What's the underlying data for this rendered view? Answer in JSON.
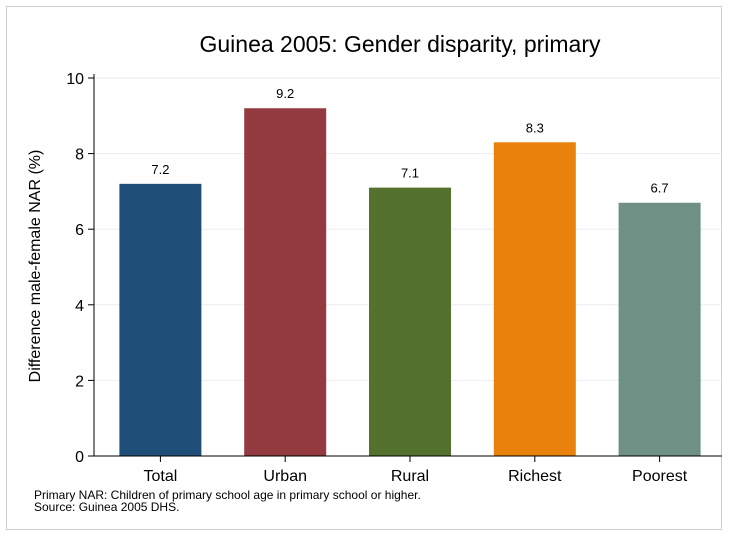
{
  "chart_data": {
    "type": "bar",
    "title": "Guinea 2005: Gender disparity, primary",
    "xlabel": "",
    "ylabel": "Difference male-female NAR (%)",
    "categories": [
      "Total",
      "Urban",
      "Rural",
      "Richest",
      "Poorest"
    ],
    "values": [
      7.2,
      9.2,
      7.1,
      8.3,
      6.7
    ],
    "value_labels": [
      "7.2",
      "9.2",
      "7.1",
      "8.3",
      "6.7"
    ],
    "colors": [
      "#1f4e79",
      "#943b41",
      "#54722d",
      "#e8820a",
      "#6e9085"
    ],
    "ylim": [
      0,
      10
    ],
    "yticks": [
      0,
      2,
      4,
      6,
      8,
      10
    ],
    "grid": true,
    "legend": "none"
  },
  "notes": {
    "line1": "Primary NAR: Children of primary school age in primary school or higher.",
    "line2": "Source: Guinea 2005 DHS."
  }
}
